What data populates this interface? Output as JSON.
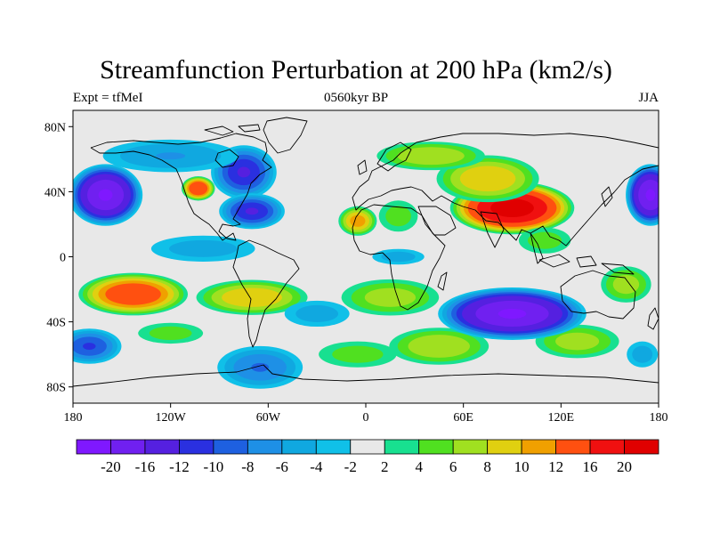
{
  "title": "Streamfunction Perturbation at 200 hPa (km2/s)",
  "subtitle_left": "Expt = tfMeI",
  "subtitle_center": "0560kyr BP",
  "subtitle_right": "JJA",
  "map": {
    "projection": "cylindrical equidistant",
    "lon_range": [
      -180,
      180
    ],
    "lat_range": [
      -90,
      90
    ],
    "background_color": "#e8e8e8",
    "lat_ticks": [
      {
        "lat": 80,
        "label": "80N"
      },
      {
        "lat": 40,
        "label": "40N"
      },
      {
        "lat": 0,
        "label": "0"
      },
      {
        "lat": -40,
        "label": "40S"
      },
      {
        "lat": -80,
        "label": "80S"
      }
    ],
    "lon_ticks": [
      {
        "lon": -180,
        "label": "180"
      },
      {
        "lon": -120,
        "label": "120W"
      },
      {
        "lon": -60,
        "label": "60W"
      },
      {
        "lon": 0,
        "label": "0"
      },
      {
        "lon": 60,
        "label": "60E"
      },
      {
        "lon": 120,
        "label": "120E"
      },
      {
        "lon": 180,
        "label": "180"
      }
    ]
  },
  "colorbar": {
    "labels": [
      "-20",
      "-16",
      "-12",
      "-10",
      "-8",
      "-6",
      "-4",
      "-2",
      "2",
      "4",
      "6",
      "8",
      "10",
      "12",
      "16",
      "20"
    ],
    "colors": [
      "#7f18ff",
      "#7020f0",
      "#5520e0",
      "#2a30e0",
      "#1e60e0",
      "#1e90e6",
      "#10a8e0",
      "#10c0e8",
      "#e8e8e8",
      "#18e090",
      "#50e020",
      "#a0e020",
      "#e0d010",
      "#f0a000",
      "#ff5010",
      "#f01010",
      "#e00000"
    ]
  },
  "field_features": [
    {
      "lon": 90,
      "lat": 30,
      "value": 22,
      "rx": 40,
      "ry": 17
    },
    {
      "lon": 75,
      "lat": 48,
      "value": 10,
      "rx": 35,
      "ry": 16
    },
    {
      "lon": 40,
      "lat": 62,
      "value": 8,
      "rx": 38,
      "ry": 10
    },
    {
      "lon": 20,
      "lat": 25,
      "value": 5,
      "rx": 15,
      "ry": 12
    },
    {
      "lon": 110,
      "lat": 10,
      "value": 5,
      "rx": 20,
      "ry": 10
    },
    {
      "lon": -5,
      "lat": 22,
      "value": 11,
      "rx": 13,
      "ry": 10
    },
    {
      "lon": -103,
      "lat": 42,
      "value": 16,
      "rx": 11,
      "ry": 8
    },
    {
      "lon": -143,
      "lat": -23,
      "value": 15,
      "rx": 36,
      "ry": 14
    },
    {
      "lon": -70,
      "lat": -25,
      "value": 10,
      "rx": 38,
      "ry": 12
    },
    {
      "lon": 15,
      "lat": -25,
      "value": 7,
      "rx": 35,
      "ry": 13
    },
    {
      "lon": 45,
      "lat": -55,
      "value": 8,
      "rx": 35,
      "ry": 13
    },
    {
      "lon": 130,
      "lat": -52,
      "value": 7,
      "rx": 30,
      "ry": 12
    },
    {
      "lon": -120,
      "lat": -47,
      "value": 5,
      "rx": 25,
      "ry": 8
    },
    {
      "lon": -5,
      "lat": -60,
      "value": 5,
      "rx": 30,
      "ry": 10
    },
    {
      "lon": 160,
      "lat": -17,
      "value": 7,
      "rx": 18,
      "ry": 13
    },
    {
      "lon": 90,
      "lat": -35,
      "value": -20,
      "rx": 48,
      "ry": 17
    },
    {
      "lon": -160,
      "lat": 38,
      "value": -20,
      "rx": 24,
      "ry": 20
    },
    {
      "lon": 175,
      "lat": 38,
      "value": -20,
      "rx": 16,
      "ry": 20
    },
    {
      "lon": -75,
      "lat": 52,
      "value": -12,
      "rx": 22,
      "ry": 18
    },
    {
      "lon": -70,
      "lat": 28,
      "value": -12,
      "rx": 22,
      "ry": 12
    },
    {
      "lon": -120,
      "lat": 62,
      "value": -6,
      "rx": 50,
      "ry": 12
    },
    {
      "lon": -100,
      "lat": 5,
      "value": -5,
      "rx": 40,
      "ry": 10
    },
    {
      "lon": -65,
      "lat": -68,
      "value": -8,
      "rx": 30,
      "ry": 15
    },
    {
      "lon": -170,
      "lat": -55,
      "value": -10,
      "rx": 22,
      "ry": 12
    },
    {
      "lon": -30,
      "lat": -35,
      "value": -5,
      "rx": 25,
      "ry": 10
    },
    {
      "lon": 20,
      "lat": 0,
      "value": -5,
      "rx": 20,
      "ry": 6
    },
    {
      "lon": 170,
      "lat": -60,
      "value": -5,
      "rx": 12,
      "ry": 10
    }
  ]
}
